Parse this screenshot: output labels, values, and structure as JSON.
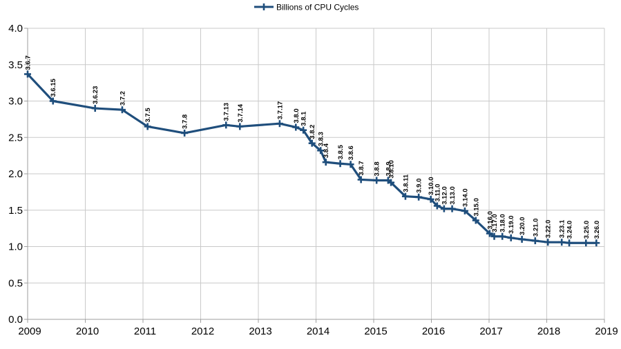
{
  "legend": {
    "label": "Billions of CPU Cycles"
  },
  "colors": {
    "series": "#1f4e7c",
    "grid": "#c9c9c9",
    "axis": "#9e9e9e",
    "text": "#000000",
    "background": "#ffffff"
  },
  "chart_data": {
    "type": "line",
    "title": "",
    "legend_label": "Billions of CPU Cycles",
    "legend_position": "top-center",
    "grid": true,
    "marker": "plus",
    "xlabel": "",
    "ylabel": "",
    "xlim": [
      2009,
      2019
    ],
    "ylim": [
      0,
      4
    ],
    "x_ticks": [
      2009,
      2010,
      2011,
      2012,
      2013,
      2014,
      2015,
      2016,
      2017,
      2018,
      2019
    ],
    "y_ticks": [
      0.0,
      0.5,
      1.0,
      1.5,
      2.0,
      2.5,
      3.0,
      3.5,
      4.0
    ],
    "y_tick_decimals": 1,
    "series": [
      {
        "name": "Billions of CPU Cycles",
        "points": [
          {
            "label": "3.6.7",
            "x": 2009.0,
            "y": 3.37
          },
          {
            "label": "3.6.15",
            "x": 2009.44,
            "y": 3.0
          },
          {
            "label": "3.6.23",
            "x": 2010.17,
            "y": 2.9
          },
          {
            "label": "3.7.2",
            "x": 2010.64,
            "y": 2.88
          },
          {
            "label": "3.7.5",
            "x": 2011.08,
            "y": 2.65
          },
          {
            "label": "3.7.8",
            "x": 2011.72,
            "y": 2.56
          },
          {
            "label": "3.7.13",
            "x": 2012.44,
            "y": 2.67
          },
          {
            "label": "3.7.14",
            "x": 2012.68,
            "y": 2.65
          },
          {
            "label": "3.7.17",
            "x": 2013.37,
            "y": 2.69
          },
          {
            "label": "3.8.0",
            "x": 2013.65,
            "y": 2.64
          },
          {
            "label": "3.8.1",
            "x": 2013.78,
            "y": 2.6
          },
          {
            "label": "3.8.2",
            "x": 2013.93,
            "y": 2.42
          },
          {
            "label": "3.8.3",
            "x": 2014.08,
            "y": 2.32
          },
          {
            "label": "3.8.4",
            "x": 2014.17,
            "y": 2.16
          },
          {
            "label": "3.8.5",
            "x": 2014.42,
            "y": 2.14
          },
          {
            "label": "3.8.6",
            "x": 2014.6,
            "y": 2.13
          },
          {
            "label": "3.8.7",
            "x": 2014.78,
            "y": 1.92
          },
          {
            "label": "3.8.8",
            "x": 2015.05,
            "y": 1.91
          },
          {
            "label": "3.8.9",
            "x": 2015.25,
            "y": 1.91
          },
          {
            "label": "3.8.10",
            "x": 2015.3,
            "y": 1.88
          },
          {
            "label": "3.8.11",
            "x": 2015.55,
            "y": 1.69
          },
          {
            "label": "3.9.0",
            "x": 2015.78,
            "y": 1.68
          },
          {
            "label": "3.10.0",
            "x": 2015.99,
            "y": 1.65
          },
          {
            "label": "3.11.0",
            "x": 2016.1,
            "y": 1.56
          },
          {
            "label": "3.12.0",
            "x": 2016.22,
            "y": 1.52
          },
          {
            "label": "3.13.0",
            "x": 2016.36,
            "y": 1.52
          },
          {
            "label": "3.14.0",
            "x": 2016.58,
            "y": 1.49
          },
          {
            "label": "3.15.0",
            "x": 2016.77,
            "y": 1.36
          },
          {
            "label": "3.16.0",
            "x": 2017.01,
            "y": 1.18
          },
          {
            "label": "3.17.0",
            "x": 2017.09,
            "y": 1.14
          },
          {
            "label": "3.18.0",
            "x": 2017.23,
            "y": 1.14
          },
          {
            "label": "3.19.0",
            "x": 2017.38,
            "y": 1.12
          },
          {
            "label": "3.20.0",
            "x": 2017.57,
            "y": 1.1
          },
          {
            "label": "3.21.0",
            "x": 2017.8,
            "y": 1.08
          },
          {
            "label": "3.22.0",
            "x": 2018.02,
            "y": 1.06
          },
          {
            "label": "3.23.1",
            "x": 2018.26,
            "y": 1.06
          },
          {
            "label": "3.24.0",
            "x": 2018.39,
            "y": 1.05
          },
          {
            "label": "3.25.0",
            "x": 2018.68,
            "y": 1.05
          },
          {
            "label": "3.26.0",
            "x": 2018.86,
            "y": 1.05
          }
        ]
      }
    ]
  }
}
